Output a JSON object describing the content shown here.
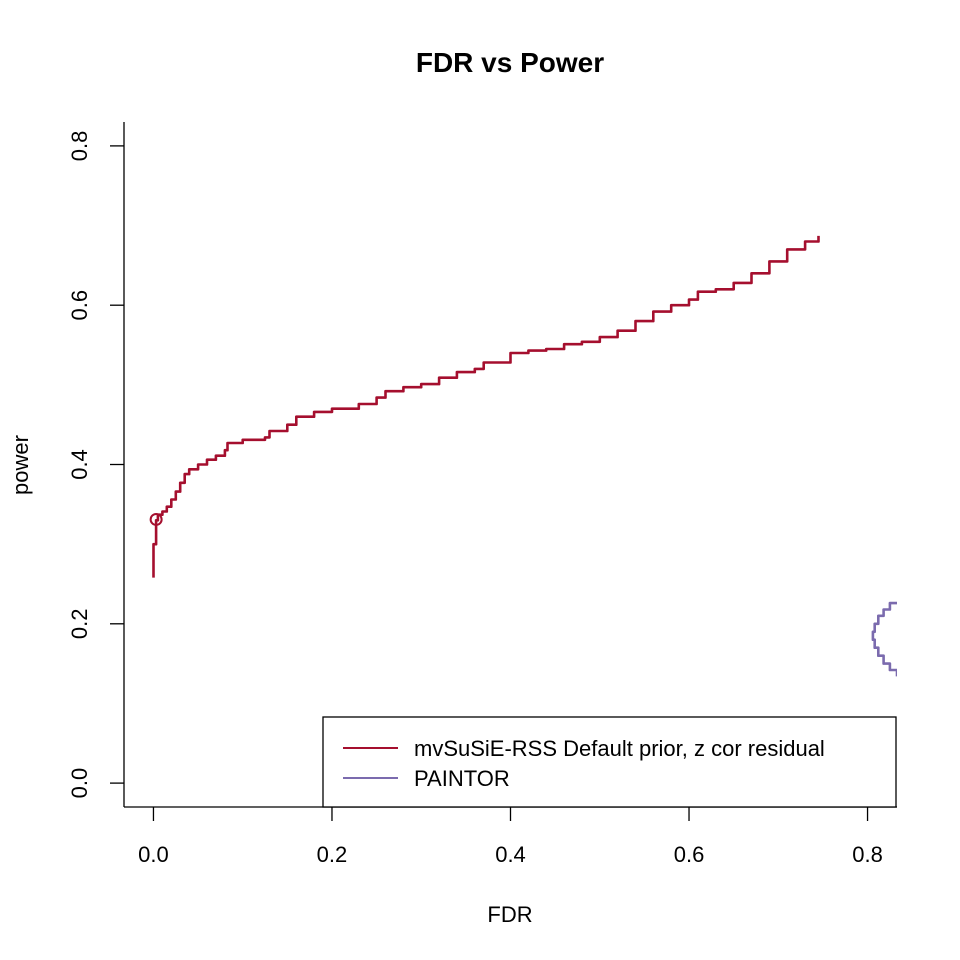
{
  "chart_data": {
    "type": "line",
    "title": "FDR vs Power",
    "xlabel": "FDR",
    "ylabel": "power",
    "xlim": [
      -0.033,
      0.833
    ],
    "ylim": [
      -0.03,
      0.83
    ],
    "x_ticks": [
      "0.0",
      "0.2",
      "0.4",
      "0.6",
      "0.8"
    ],
    "y_ticks": [
      "0.0",
      "0.2",
      "0.4",
      "0.6",
      "0.8"
    ],
    "grid": false,
    "legend_position": "bottom-right",
    "series": [
      {
        "name": "mvSuSiE-RSS Default prior, z cor residual",
        "color": "#A50F2E",
        "marker": {
          "x": 0.003,
          "y": 0.331
        },
        "points": [
          [
            0.0,
            0.258
          ],
          [
            0.0,
            0.3
          ],
          [
            0.003,
            0.308
          ],
          [
            0.003,
            0.33
          ],
          [
            0.005,
            0.337
          ],
          [
            0.01,
            0.341
          ],
          [
            0.015,
            0.347
          ],
          [
            0.02,
            0.356
          ],
          [
            0.025,
            0.366
          ],
          [
            0.03,
            0.377
          ],
          [
            0.035,
            0.388
          ],
          [
            0.04,
            0.394
          ],
          [
            0.05,
            0.4
          ],
          [
            0.06,
            0.406
          ],
          [
            0.07,
            0.411
          ],
          [
            0.08,
            0.418
          ],
          [
            0.083,
            0.427
          ],
          [
            0.1,
            0.431
          ],
          [
            0.125,
            0.434
          ],
          [
            0.13,
            0.442
          ],
          [
            0.15,
            0.45
          ],
          [
            0.16,
            0.46
          ],
          [
            0.18,
            0.466
          ],
          [
            0.2,
            0.47
          ],
          [
            0.23,
            0.476
          ],
          [
            0.25,
            0.484
          ],
          [
            0.26,
            0.492
          ],
          [
            0.28,
            0.497
          ],
          [
            0.3,
            0.501
          ],
          [
            0.32,
            0.509
          ],
          [
            0.34,
            0.516
          ],
          [
            0.36,
            0.52
          ],
          [
            0.37,
            0.528
          ],
          [
            0.4,
            0.54
          ],
          [
            0.42,
            0.543
          ],
          [
            0.44,
            0.545
          ],
          [
            0.46,
            0.551
          ],
          [
            0.48,
            0.554
          ],
          [
            0.5,
            0.56
          ],
          [
            0.52,
            0.568
          ],
          [
            0.54,
            0.58
          ],
          [
            0.56,
            0.592
          ],
          [
            0.58,
            0.6
          ],
          [
            0.6,
            0.607
          ],
          [
            0.61,
            0.617
          ],
          [
            0.63,
            0.62
          ],
          [
            0.65,
            0.628
          ],
          [
            0.67,
            0.64
          ],
          [
            0.69,
            0.655
          ],
          [
            0.71,
            0.67
          ],
          [
            0.73,
            0.68
          ],
          [
            0.745,
            0.687
          ]
        ]
      },
      {
        "name": "PAINTOR",
        "color": "#7B6BAE",
        "points": [
          [
            0.833,
            0.226
          ],
          [
            0.825,
            0.218
          ],
          [
            0.818,
            0.21
          ],
          [
            0.812,
            0.2
          ],
          [
            0.808,
            0.19
          ],
          [
            0.806,
            0.18
          ],
          [
            0.808,
            0.17
          ],
          [
            0.812,
            0.16
          ],
          [
            0.818,
            0.15
          ],
          [
            0.825,
            0.142
          ],
          [
            0.833,
            0.134
          ]
        ]
      }
    ]
  }
}
